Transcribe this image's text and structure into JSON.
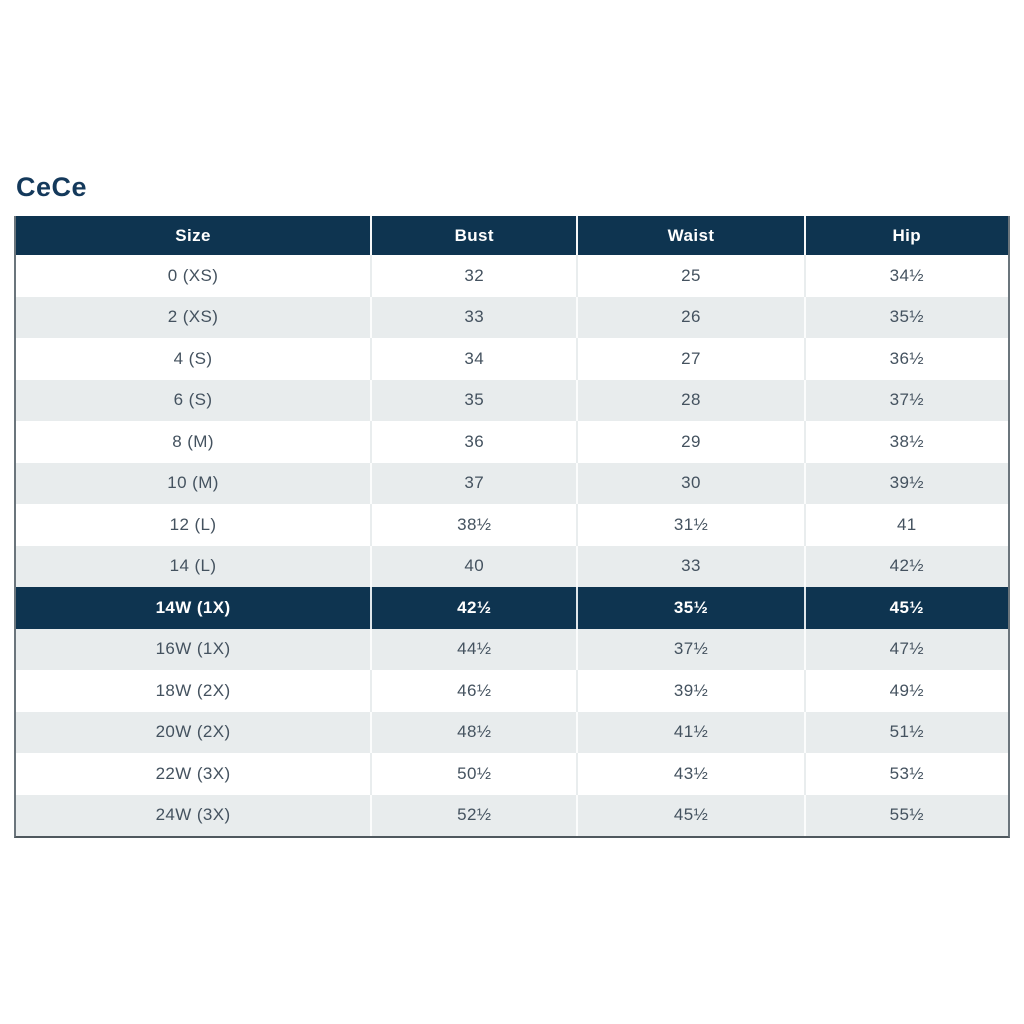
{
  "title": "CeCe",
  "colors": {
    "header_bg": "#0e3450",
    "highlight_bg": "#0e3450",
    "row_bg": "#ffffff",
    "row_alt_bg": "#e8eced",
    "header_text": "#ffffff",
    "cell_text": "#44525f",
    "title_text": "#14395b"
  },
  "chart_data": {
    "type": "table",
    "title": "CeCe",
    "columns": [
      "Size",
      "Bust",
      "Waist",
      "Hip"
    ],
    "rows": [
      {
        "size": "0 (XS)",
        "bust": "32",
        "waist": "25",
        "hip": "34½",
        "highlight": false
      },
      {
        "size": "2 (XS)",
        "bust": "33",
        "waist": "26",
        "hip": "35½",
        "highlight": false
      },
      {
        "size": "4 (S)",
        "bust": "34",
        "waist": "27",
        "hip": "36½",
        "highlight": false
      },
      {
        "size": "6 (S)",
        "bust": "35",
        "waist": "28",
        "hip": "37½",
        "highlight": false
      },
      {
        "size": "8 (M)",
        "bust": "36",
        "waist": "29",
        "hip": "38½",
        "highlight": false
      },
      {
        "size": "10 (M)",
        "bust": "37",
        "waist": "30",
        "hip": "39½",
        "highlight": false
      },
      {
        "size": "12 (L)",
        "bust": "38½",
        "waist": "31½",
        "hip": "41",
        "highlight": false
      },
      {
        "size": "14 (L)",
        "bust": "40",
        "waist": "33",
        "hip": "42½",
        "highlight": false
      },
      {
        "size": "14W (1X)",
        "bust": "42½",
        "waist": "35½",
        "hip": "45½",
        "highlight": true
      },
      {
        "size": "16W (1X)",
        "bust": "44½",
        "waist": "37½",
        "hip": "47½",
        "highlight": false
      },
      {
        "size": "18W (2X)",
        "bust": "46½",
        "waist": "39½",
        "hip": "49½",
        "highlight": false
      },
      {
        "size": "20W (2X)",
        "bust": "48½",
        "waist": "41½",
        "hip": "51½",
        "highlight": false
      },
      {
        "size": "22W (3X)",
        "bust": "50½",
        "waist": "43½",
        "hip": "53½",
        "highlight": false
      },
      {
        "size": "24W (3X)",
        "bust": "52½",
        "waist": "45½",
        "hip": "55½",
        "highlight": false
      }
    ]
  }
}
